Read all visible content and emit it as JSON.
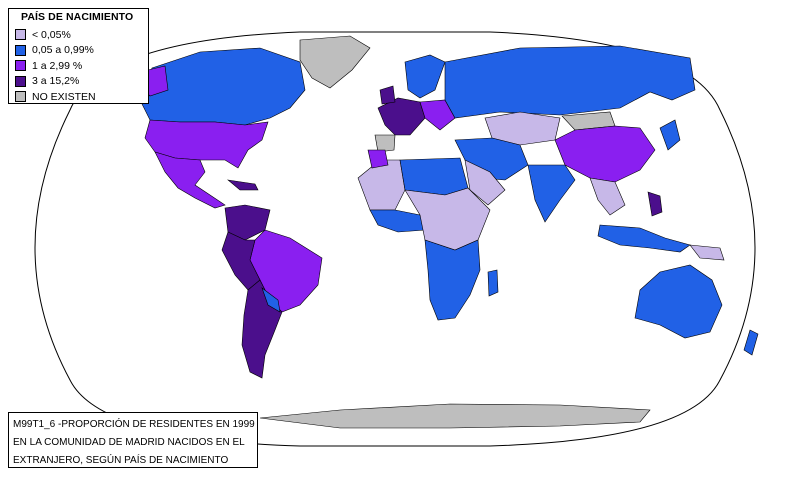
{
  "legend": {
    "title": "PAÍS DE NACIMIENTO",
    "items": [
      {
        "label": "< 0,05%",
        "color": "#c7b8e8"
      },
      {
        "label": "0,05 a 0,99%",
        "color": "#2161e6"
      },
      {
        "label": "1 a 2,99 %",
        "color": "#8a1ff0"
      },
      {
        "label": "3  a 15,2%",
        "color": "#4b0f8c"
      },
      {
        "label": "NO EXISTEN",
        "color": "#bebebe"
      }
    ]
  },
  "caption": {
    "lines": [
      "M99T1_6 -PROPORCIÓN DE RESIDENTES EN 1999",
      "EN LA COMUNIDAD DE MADRID NACIDOS EN EL",
      "EXTRANJERO, SEGÚN PAÍS DE NACIMIENTO"
    ]
  },
  "colors": {
    "ocean": "#ffffff",
    "outline": "#000000",
    "class_lt_0_05": "#c7b8e8",
    "class_0_05_0_99": "#2161e6",
    "class_1_2_99": "#8a1ff0",
    "class_3_15_2": "#4b0f8c",
    "class_none": "#bebebe"
  }
}
